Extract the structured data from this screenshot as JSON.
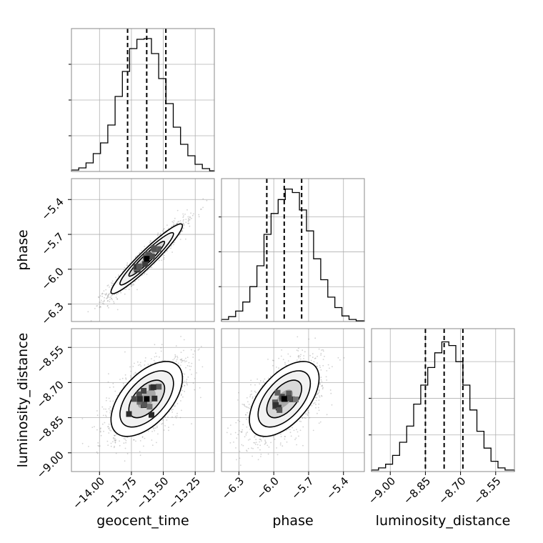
{
  "chart_data": {
    "type": "corner",
    "parameters": [
      "geocent_time",
      "phase",
      "luminosity_distance"
    ],
    "axes": {
      "geocent_time": {
        "label": "geocent_time",
        "range": [
          -14.22,
          -13.1
        ],
        "ticks": [
          -14.0,
          -13.75,
          -13.5,
          -13.25
        ],
        "tick_labels": [
          "−14.00",
          "−13.75",
          "−13.50",
          "−13.25"
        ],
        "quantiles": [
          -13.78,
          -13.63,
          -13.48
        ]
      },
      "phase": {
        "label": "phase",
        "range": [
          -6.45,
          -5.22
        ],
        "ticks": [
          -6.3,
          -6.0,
          -5.7,
          -5.4
        ],
        "tick_labels": [
          "−6.3",
          "−6.0",
          "−5.7",
          "−5.4"
        ],
        "quantiles": [
          -6.06,
          -5.91,
          -5.76
        ]
      },
      "luminosity_distance": {
        "label": "luminosity_distance",
        "range": [
          -9.08,
          -8.47
        ],
        "ticks": [
          -9.0,
          -8.85,
          -8.7,
          -8.55
        ],
        "tick_labels": [
          "−9.00",
          "−8.85",
          "−8.70",
          "−8.55"
        ],
        "quantiles": [
          -8.85,
          -8.77,
          -8.69
        ]
      }
    },
    "histograms": {
      "geocent_time": {
        "bin_edges": [
          -14.22,
          -14.163,
          -14.106,
          -14.049,
          -13.992,
          -13.935,
          -13.878,
          -13.821,
          -13.764,
          -13.707,
          -13.65,
          -13.593,
          -13.536,
          -13.479,
          -13.422,
          -13.365,
          -13.308,
          -13.251,
          -13.194,
          -13.137,
          -13.1
        ],
        "counts": [
          2,
          5,
          12,
          25,
          40,
          65,
          105,
          140,
          172,
          185,
          186,
          165,
          130,
          95,
          62,
          38,
          22,
          10,
          4,
          1
        ],
        "ymax": 200
      },
      "phase": {
        "bin_edges": [
          -6.45,
          -6.389,
          -6.328,
          -6.267,
          -6.206,
          -6.145,
          -6.084,
          -6.023,
          -5.962,
          -5.901,
          -5.84,
          -5.779,
          -5.718,
          -5.657,
          -5.596,
          -5.535,
          -5.474,
          -5.413,
          -5.352,
          -5.291,
          -5.22
        ],
        "counts": [
          3,
          7,
          15,
          28,
          50,
          80,
          125,
          155,
          175,
          190,
          185,
          160,
          130,
          90,
          60,
          35,
          20,
          8,
          3,
          1
        ],
        "ymax": 205
      },
      "luminosity_distance": {
        "bin_edges": [
          -9.08,
          -9.05,
          -9.02,
          -8.99,
          -8.96,
          -8.93,
          -8.9,
          -8.87,
          -8.84,
          -8.81,
          -8.78,
          -8.75,
          -8.72,
          -8.69,
          -8.66,
          -8.63,
          -8.6,
          -8.57,
          -8.54,
          -8.51,
          -8.47
        ],
        "counts": [
          2,
          5,
          10,
          22,
          40,
          62,
          92,
          118,
          142,
          162,
          177,
          172,
          150,
          118,
          84,
          55,
          32,
          14,
          5,
          2
        ],
        "ymax": 195
      }
    },
    "joint_2d": [
      {
        "x": "geocent_time",
        "y": "phase",
        "center": [
          -13.63,
          -5.91
        ],
        "sd": [
          0.14,
          0.15
        ],
        "correlation": 0.95
      },
      {
        "x": "geocent_time",
        "y": "luminosity_distance",
        "center": [
          -13.63,
          -8.77
        ],
        "sd": [
          0.14,
          0.08
        ],
        "correlation": 0.55
      },
      {
        "x": "phase",
        "y": "luminosity_distance",
        "center": [
          -5.91,
          -8.77
        ],
        "sd": [
          0.15,
          0.08
        ],
        "correlation": 0.55
      }
    ],
    "contour_levels_sigma": [
      0.5,
      1.0,
      1.5,
      2.0
    ],
    "grid": true,
    "colors": {
      "hist_line": "#000000",
      "quantile_line": "#000000",
      "scatter": "#7f7f7f",
      "grid": "#b0b0b0",
      "frame": "#888888"
    }
  }
}
